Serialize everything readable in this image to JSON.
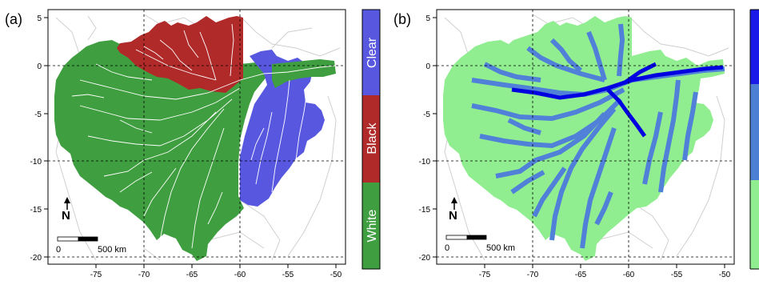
{
  "panels": [
    {
      "label": "(a)",
      "x_ticks": [
        "-75",
        "-70",
        "-65",
        "-60",
        "-55",
        "-50"
      ],
      "y_ticks": [
        "5",
        "0",
        "-5",
        "-10",
        "-15",
        "-20"
      ],
      "scale_zero": "0",
      "scale_text": "500 km",
      "north": "N",
      "legend": [
        {
          "label": "Clear",
          "color": "#5757e0"
        },
        {
          "label": "Black",
          "color": "#b02a2a"
        },
        {
          "label": "White",
          "color": "#3f9e3f"
        }
      ]
    },
    {
      "label": "(b)",
      "x_ticks": [
        "-75",
        "-70",
        "-65",
        "-60",
        "-55",
        "-50"
      ],
      "y_ticks": [
        "5",
        "0",
        "-5",
        "-10",
        "-15",
        "-20"
      ],
      "scale_zero": "0",
      "scale_text": "500 km",
      "north": "N"
    }
  ],
  "colors": {
    "white_water": "#3f9e3f",
    "black_water": "#b02a2a",
    "clear_water": "#5757e0",
    "basin_light": "#90ee90",
    "river_mid": "#5080d8",
    "river_main": "#0000e0",
    "legend_b_top": "#1a1ae8",
    "legend_b_mid": "#4a7fd4"
  }
}
